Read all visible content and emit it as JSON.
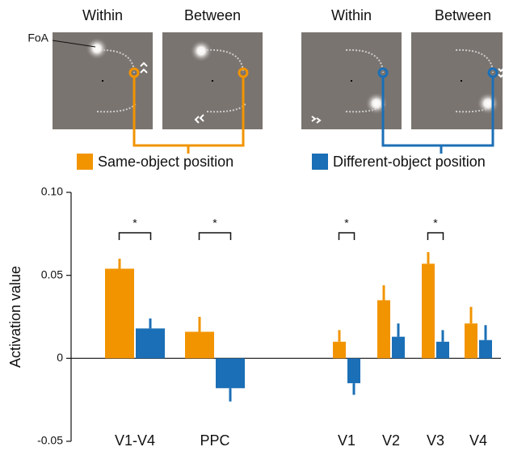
{
  "diagram": {
    "panel_titles": [
      "Within",
      "Between",
      "Within",
      "Between"
    ],
    "foa_label": "FoA"
  },
  "chart_data": {
    "type": "bar",
    "y_label": "Activation value",
    "categories": [
      "V1-V4",
      "PPC",
      "V1",
      "V2",
      "V3",
      "V4"
    ],
    "series": [
      {
        "name": "Same-object position",
        "color": "#f29400",
        "values": [
          0.054,
          0.016,
          0.01,
          0.035,
          0.057,
          0.021
        ],
        "errors": [
          0.006,
          0.009,
          0.007,
          0.009,
          0.007,
          0.01
        ]
      },
      {
        "name": "Different-object position",
        "color": "#1b6fb6",
        "values": [
          0.018,
          -0.018,
          -0.015,
          0.013,
          0.01,
          0.011
        ],
        "errors": [
          0.006,
          0.008,
          0.007,
          0.008,
          0.007,
          0.009
        ]
      }
    ],
    "significance": [
      "*",
      "*",
      "*",
      null,
      "*",
      null
    ],
    "ylim": [
      -0.05,
      0.1
    ],
    "yticks": [
      -0.05,
      0,
      0.05,
      {
        "value": 0.1,
        "label": "0.10"
      }
    ]
  }
}
